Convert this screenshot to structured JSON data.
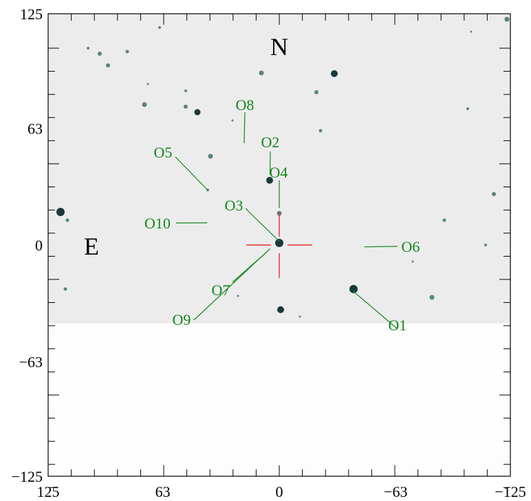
{
  "chart_data": {
    "type": "scatter",
    "xlim": [
      125,
      -125
    ],
    "ylim": [
      -125,
      125
    ],
    "x_ticks": [
      "125",
      "63",
      "0",
      "−63",
      "−125"
    ],
    "y_ticks": [
      "125",
      "63",
      "0",
      "−63",
      "−125"
    ],
    "compass": {
      "north": "N",
      "east": "E"
    },
    "objects": [
      {
        "label": "O1",
        "x": -40,
        "y": -25
      },
      {
        "label": "O2",
        "x": 5,
        "y": 38
      },
      {
        "label": "O3",
        "x": 0,
        "y": 2
      },
      {
        "label": "O4",
        "x": 0,
        "y": 20
      },
      {
        "label": "O5",
        "x": 39,
        "y": 30
      },
      {
        "label": "O6",
        "x": -46,
        "y": -1
      },
      {
        "label": "O7",
        "x": 7,
        "y": -4
      },
      {
        "label": "O8",
        "x": 19,
        "y": 55
      },
      {
        "label": "O9",
        "x": 5,
        "y": -2
      },
      {
        "label": "O10",
        "x": 39,
        "y": 12
      }
    ],
    "target_marker": {
      "x": 0,
      "y": 0
    }
  }
}
